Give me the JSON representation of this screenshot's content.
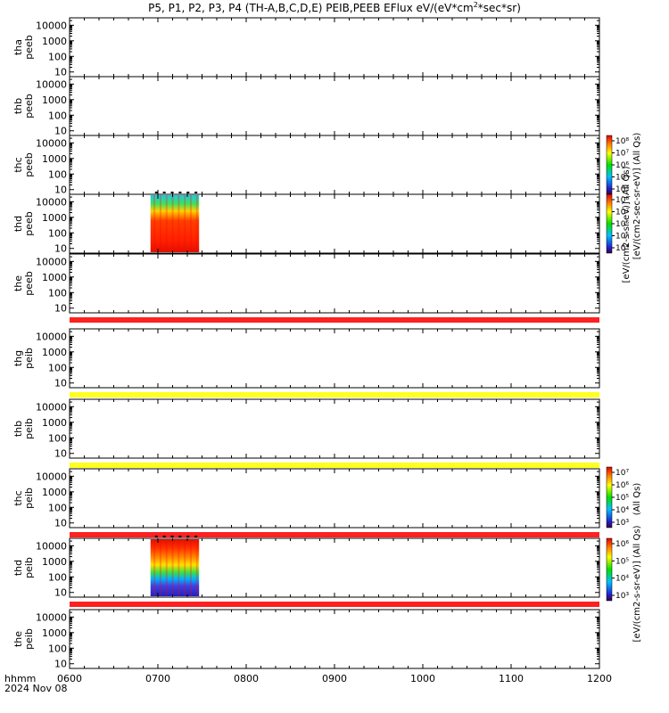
{
  "title": {
    "main": "P5, P1, P2, P3, P4 (TH-A,B,C,D,E) PEIB,PEEB EFlux eV/(eV*cm",
    "sup": "2",
    "tail": "*sec*sr)"
  },
  "chart_data": {
    "type": "heatmap",
    "x_ticks": [
      "0600",
      "0700",
      "0800",
      "0900",
      "1000",
      "1100",
      "1200"
    ],
    "x_range_hours": [
      6,
      12
    ],
    "x_label": "hhmm",
    "date_label": "2024 Nov 08",
    "y_scale": "log",
    "y_ticks": [
      "10",
      "100",
      "1000",
      "10000"
    ],
    "y_ticks_values": [
      10,
      100,
      1000,
      10000
    ],
    "y_range": [
      5,
      30000
    ],
    "panels": [
      {
        "probe": "thа",
        "label1": "tha",
        "label2": "peeb",
        "data_start": null,
        "data_end": null,
        "status_after": null
      },
      {
        "label1": "thb",
        "label2": "peeb",
        "data_start": null,
        "data_end": null,
        "status_after": null
      },
      {
        "label1": "thc",
        "label2": "peeb",
        "data_start": null,
        "data_end": null,
        "status_after": null
      },
      {
        "label1": "thd",
        "label2": "peeb",
        "data_start": "06:55",
        "data_end": "07:28",
        "status_after": null
      },
      {
        "label1": "the",
        "label2": "peeb",
        "data_start": null,
        "data_end": null,
        "status_after": "#ff2020"
      },
      {
        "label1": "thg",
        "label2": "peib",
        "data_start": null,
        "data_end": null,
        "status_after": "#ffff20"
      },
      {
        "label1": "thb",
        "label2": "peib",
        "data_start": null,
        "data_end": null,
        "status_after": "#ffff20"
      },
      {
        "label1": "thc",
        "label2": "peib",
        "data_start": null,
        "data_end": null,
        "status_after": "#ff2020"
      },
      {
        "label1": "thd",
        "label2": "peib",
        "data_start": "06:55",
        "data_end": "07:28",
        "status_after": "#ff2020"
      },
      {
        "label1": "the",
        "label2": "peib",
        "data_start": null,
        "data_end": null,
        "status_after": null
      }
    ],
    "colorbars": [
      {
        "label": "[eV/(cm2-sec-sr-eV)] (All Qs)",
        "ticks": [
          "10⁴",
          "10⁵",
          "10⁶",
          "10⁷",
          "10⁸"
        ]
      },
      {
        "label": "[eV/(cm2-s-sr-eV)] (All Qs)",
        "ticks": [
          "10⁴",
          "10⁵",
          "10⁶",
          "10⁷",
          "10⁸"
        ]
      },
      {
        "label": "(All Qs)",
        "ticks": [
          "10³",
          "10⁴",
          "10⁵",
          "10⁶",
          "10⁷"
        ]
      },
      {
        "label": "[eV/(cm2-s-sr-eV)] (All Qs)",
        "ticks": [
          "10³",
          "10⁴",
          "10⁵",
          "10⁶"
        ]
      }
    ],
    "colors": {
      "status_red": "#ff2020",
      "status_yellow": "#ffff20"
    }
  }
}
